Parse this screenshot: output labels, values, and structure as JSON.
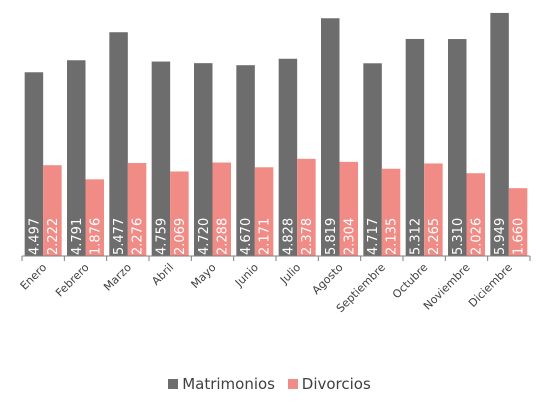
{
  "chart_data": {
    "type": "bar",
    "categories": [
      "Enero",
      "Febrero",
      "Marzo",
      "Abril",
      "Mayo",
      "Junio",
      "Julio",
      "Agosto",
      "Septiembre",
      "Octubre",
      "Noviembre",
      "Diciembre"
    ],
    "series": [
      {
        "name": "Matrimonios",
        "color": "#6d6d6d",
        "values": [
          4497,
          4791,
          5477,
          4759,
          4720,
          4670,
          4828,
          5819,
          4717,
          5312,
          5310,
          5949
        ],
        "labels": [
          "4.497",
          "4.791",
          "5.477",
          "4.759",
          "4.720",
          "4.670",
          "4.828",
          "5.819",
          "4.717",
          "5.312",
          "5.310",
          "5.949"
        ]
      },
      {
        "name": "Divorcios",
        "color": "#f08b86",
        "values": [
          2222,
          1876,
          2276,
          2069,
          2288,
          2171,
          2378,
          2304,
          2135,
          2265,
          2026,
          1660
        ],
        "labels": [
          "2.222",
          "1.876",
          "2.276",
          "2.069",
          "2.288",
          "2.171",
          "2.378",
          "2.304",
          "2.135",
          "2.265",
          "2.026",
          "1.660"
        ]
      }
    ],
    "ylim": [
      0,
      6070
    ],
    "grid": false,
    "legend_position": "bottom",
    "axis_color": "#7f7f7f"
  }
}
